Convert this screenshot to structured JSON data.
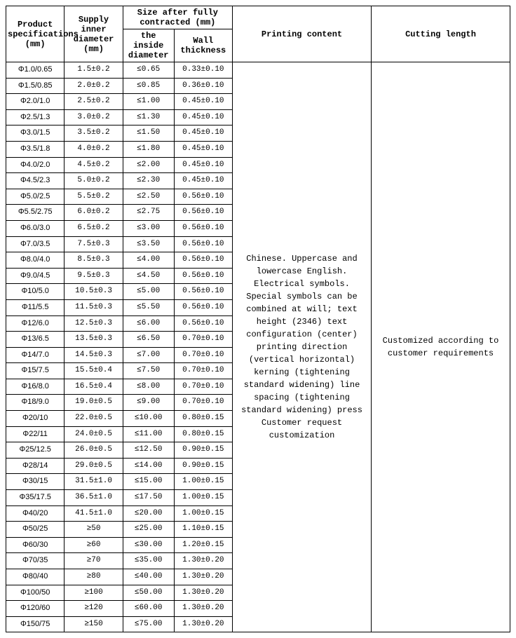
{
  "headers": {
    "col1": "Product specifications (mm)",
    "col2": "Supply inner diameter (mm)",
    "group": "Size after fully contracted (mm)",
    "col3": "the inside diameter",
    "col4": "Wall thickness",
    "col5": "Printing content",
    "col6": "Cutting length"
  },
  "printing_content": "Chinese. Uppercase and lowercase English. Electrical symbols. Special symbols can be combined at will; text height (2346) text configuration (center) printing direction (vertical horizontal) kerning (tightening standard widening) line spacing (tightening standard widening) press Customer request customization",
  "cutting_length": "Customized according to customer requirements",
  "rows": [
    {
      "spec": "Φ1.0/0.65",
      "supply": "1.5±0.2",
      "inside": "≤0.65",
      "wall": "0.33±0.10"
    },
    {
      "spec": "Φ1.5/0.85",
      "supply": "2.0±0.2",
      "inside": "≤0.85",
      "wall": "0.36±0.10"
    },
    {
      "spec": "Φ2.0/1.0",
      "supply": "2.5±0.2",
      "inside": "≤1.00",
      "wall": "0.45±0.10"
    },
    {
      "spec": "Φ2.5/1.3",
      "supply": "3.0±0.2",
      "inside": "≤1.30",
      "wall": "0.45±0.10"
    },
    {
      "spec": "Φ3.0/1.5",
      "supply": "3.5±0.2",
      "inside": "≤1.50",
      "wall": "0.45±0.10"
    },
    {
      "spec": "Φ3.5/1.8",
      "supply": "4.0±0.2",
      "inside": "≤1.80",
      "wall": "0.45±0.10"
    },
    {
      "spec": "Φ4.0/2.0",
      "supply": "4.5±0.2",
      "inside": "≤2.00",
      "wall": "0.45±0.10"
    },
    {
      "spec": "Φ4.5/2.3",
      "supply": "5.0±0.2",
      "inside": "≤2.30",
      "wall": "0.45±0.10"
    },
    {
      "spec": "Φ5.0/2.5",
      "supply": "5.5±0.2",
      "inside": "≤2.50",
      "wall": "0.56±0.10"
    },
    {
      "spec": "Φ5.5/2.75",
      "supply": "6.0±0.2",
      "inside": "≤2.75",
      "wall": "0.56±0.10"
    },
    {
      "spec": "Φ6.0/3.0",
      "supply": "6.5±0.2",
      "inside": "≤3.00",
      "wall": "0.56±0.10"
    },
    {
      "spec": "Φ7.0/3.5",
      "supply": "7.5±0.3",
      "inside": "≤3.50",
      "wall": "0.56±0.10"
    },
    {
      "spec": "Φ8.0/4.0",
      "supply": "8.5±0.3",
      "inside": "≤4.00",
      "wall": "0.56±0.10"
    },
    {
      "spec": "Φ9.0/4.5",
      "supply": "9.5±0.3",
      "inside": "≤4.50",
      "wall": "0.56±0.10"
    },
    {
      "spec": "Φ10/5.0",
      "supply": "10.5±0.3",
      "inside": "≤5.00",
      "wall": "0.56±0.10"
    },
    {
      "spec": "Φ11/5.5",
      "supply": "11.5±0.3",
      "inside": "≤5.50",
      "wall": "0.56±0.10"
    },
    {
      "spec": "Φ12/6.0",
      "supply": "12.5±0.3",
      "inside": "≤6.00",
      "wall": "0.56±0.10"
    },
    {
      "spec": "Φ13/6.5",
      "supply": "13.5±0.3",
      "inside": "≤6.50",
      "wall": "0.70±0.10"
    },
    {
      "spec": "Φ14/7.0",
      "supply": "14.5±0.3",
      "inside": "≤7.00",
      "wall": "0.70±0.10"
    },
    {
      "spec": "Φ15/7.5",
      "supply": "15.5±0.4",
      "inside": "≤7.50",
      "wall": "0.70±0.10"
    },
    {
      "spec": "Φ16/8.0",
      "supply": "16.5±0.4",
      "inside": "≤8.00",
      "wall": "0.70±0.10"
    },
    {
      "spec": "Φ18/9.0",
      "supply": "19.0±0.5",
      "inside": "≤9.00",
      "wall": "0.70±0.10"
    },
    {
      "spec": "Φ20/10",
      "supply": "22.0±0.5",
      "inside": "≤10.00",
      "wall": "0.80±0.15"
    },
    {
      "spec": "Φ22/11",
      "supply": "24.0±0.5",
      "inside": "≤11.00",
      "wall": "0.80±0.15"
    },
    {
      "spec": "Φ25/12.5",
      "supply": "26.0±0.5",
      "inside": "≤12.50",
      "wall": "0.90±0.15"
    },
    {
      "spec": "Φ28/14",
      "supply": "29.0±0.5",
      "inside": "≤14.00",
      "wall": "0.90±0.15"
    },
    {
      "spec": "Φ30/15",
      "supply": "31.5±1.0",
      "inside": "≤15.00",
      "wall": "1.00±0.15"
    },
    {
      "spec": "Φ35/17.5",
      "supply": "36.5±1.0",
      "inside": "≤17.50",
      "wall": "1.00±0.15"
    },
    {
      "spec": "Φ40/20",
      "supply": "41.5±1.0",
      "inside": "≤20.00",
      "wall": "1.00±0.15"
    },
    {
      "spec": "Φ50/25",
      "supply": "≥50",
      "inside": "≤25.00",
      "wall": "1.10±0.15"
    },
    {
      "spec": "Φ60/30",
      "supply": "≥60",
      "inside": "≤30.00",
      "wall": "1.20±0.15"
    },
    {
      "spec": "Φ70/35",
      "supply": "≥70",
      "inside": "≤35.00",
      "wall": "1.30±0.20"
    },
    {
      "spec": "Φ80/40",
      "supply": "≥80",
      "inside": "≤40.00",
      "wall": "1.30±0.20"
    },
    {
      "spec": "Φ100/50",
      "supply": "≥100",
      "inside": "≤50.00",
      "wall": "1.30±0.20"
    },
    {
      "spec": "Φ120/60",
      "supply": "≥120",
      "inside": "≤60.00",
      "wall": "1.30±0.20"
    },
    {
      "spec": "Φ150/75",
      "supply": "≥150",
      "inside": "≤75.00",
      "wall": "1.30±0.20"
    }
  ],
  "colors": {
    "border": "#000000",
    "background": "#ffffff",
    "text": "#000000"
  }
}
